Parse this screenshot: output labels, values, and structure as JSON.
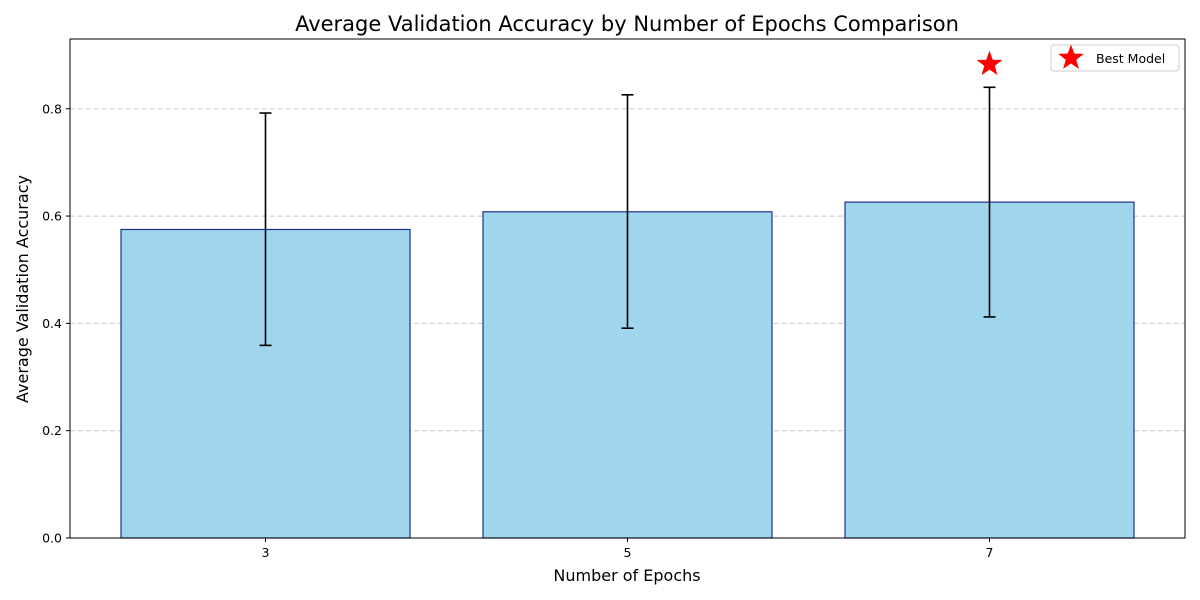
{
  "chart_data": {
    "type": "bar",
    "title": "Average Validation Accuracy by Number of Epochs Comparison",
    "xlabel": "Number of Epochs",
    "ylabel": "Average Validation Accuracy",
    "categories": [
      "3",
      "5",
      "7"
    ],
    "values": [
      0.575,
      0.608,
      0.626
    ],
    "error_low": [
      0.359,
      0.391,
      0.412
    ],
    "error_high": [
      0.792,
      0.826,
      0.84
    ],
    "ylim": [
      0.0,
      0.93
    ],
    "yticks": [
      "0.0",
      "0.2",
      "0.4",
      "0.6",
      "0.8"
    ],
    "ytick_values": [
      0.0,
      0.2,
      0.4,
      0.6,
      0.8
    ],
    "grid": "y-dashed",
    "best_marker": {
      "category": "7",
      "y": 0.885,
      "label": "Best Model",
      "color": "#ff0000"
    },
    "legend": {
      "placement": "top-right",
      "entries": [
        "Best Model"
      ]
    },
    "colors": {
      "bar_fill": "#a0d6ed",
      "bar_edge": "#1f2f8f",
      "error_bar": "#000000",
      "grid": "#c8c8c8"
    }
  }
}
